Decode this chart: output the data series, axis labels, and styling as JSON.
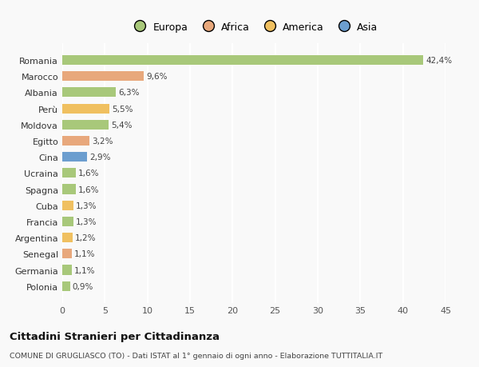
{
  "categories": [
    "Romania",
    "Marocco",
    "Albania",
    "Perù",
    "Moldova",
    "Egitto",
    "Cina",
    "Ucraina",
    "Spagna",
    "Cuba",
    "Francia",
    "Argentina",
    "Senegal",
    "Germania",
    "Polonia"
  ],
  "values": [
    42.4,
    9.6,
    6.3,
    5.5,
    5.4,
    3.2,
    2.9,
    1.6,
    1.6,
    1.3,
    1.3,
    1.2,
    1.1,
    1.1,
    0.9
  ],
  "labels": [
    "42,4%",
    "9,6%",
    "6,3%",
    "5,5%",
    "5,4%",
    "3,2%",
    "2,9%",
    "1,6%",
    "1,6%",
    "1,3%",
    "1,3%",
    "1,2%",
    "1,1%",
    "1,1%",
    "0,9%"
  ],
  "colors": [
    "#a8c87a",
    "#e8a87c",
    "#a8c87a",
    "#f0c060",
    "#a8c87a",
    "#e8a87c",
    "#6c9ecf",
    "#a8c87a",
    "#a8c87a",
    "#f0c060",
    "#a8c87a",
    "#f0c060",
    "#e8a87c",
    "#a8c87a",
    "#a8c87a"
  ],
  "legend_labels": [
    "Europa",
    "Africa",
    "America",
    "Asia"
  ],
  "legend_colors": [
    "#a8c87a",
    "#e8a87c",
    "#f0c060",
    "#6c9ecf"
  ],
  "xlim": [
    0,
    45
  ],
  "xticks": [
    0,
    5,
    10,
    15,
    20,
    25,
    30,
    35,
    40,
    45
  ],
  "title": "Cittadini Stranieri per Cittadinanza",
  "subtitle": "COMUNE DI GRUGLIASCO (TO) - Dati ISTAT al 1° gennaio di ogni anno - Elaborazione TUTTITALIA.IT",
  "background_color": "#f9f9f9",
  "grid_color": "#ffffff",
  "bar_height": 0.6
}
